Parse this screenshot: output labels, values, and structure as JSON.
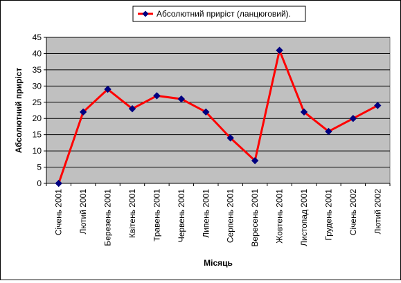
{
  "chart_data": {
    "type": "line",
    "categories": [
      "Січень 2001",
      "Лютий 2001",
      "Березень 2001",
      "Квітень 2001",
      "Травень 2001",
      "Червень 2001",
      "Липень 2001",
      "Серпень 2001",
      "Вересень 2001",
      "Жовтень 2001",
      "Листопад 2001",
      "Грудень 2001",
      "Січень 2002",
      "Лютий 2002"
    ],
    "series": [
      {
        "name": "Абсолютний приріст (ланцюговий).",
        "values": [
          0,
          22,
          29,
          23,
          27,
          26,
          22,
          14,
          7,
          41,
          22,
          16,
          20,
          24
        ],
        "line_color": "#ff0000",
        "marker_color": "#000080"
      }
    ],
    "xlabel": "Місяць",
    "ylabel": "Абсолютний приріст",
    "ylim": [
      0,
      45
    ],
    "yticks": [
      0,
      5,
      10,
      15,
      20,
      25,
      30,
      35,
      40,
      45
    ],
    "grid": true,
    "legend": "top-center",
    "plot_background": "#c0c0c0"
  }
}
